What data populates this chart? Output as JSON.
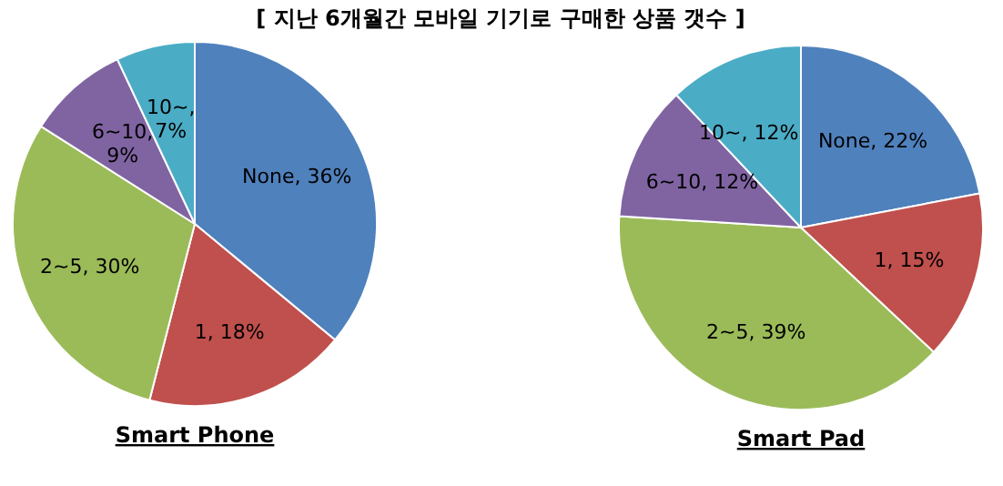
{
  "chart_data": [
    {
      "type": "pie",
      "title": "[ 지난 6개월간 모바일 기기로 구매한 상품 갯수 ]",
      "xlabel": "Smart Phone",
      "categories": [
        "None",
        "1",
        "2~5",
        "6~10",
        "10~"
      ],
      "values": [
        36,
        18,
        30,
        9,
        7
      ],
      "value_labels": [
        ", 36%",
        ", 18%",
        ", 30%",
        ", 9%",
        ", 7%"
      ],
      "colors": [
        "#4f81bd",
        "#c0504d",
        "#9bbb59",
        "#8064a2",
        "#4bacc6"
      ]
    },
    {
      "type": "pie",
      "xlabel": "Smart Pad",
      "categories": [
        "None",
        "1",
        "2~5",
        "6~10",
        "10~"
      ],
      "values": [
        22,
        15,
        39,
        12,
        12
      ],
      "value_labels": [
        ", 22%",
        ", 15%",
        ", 39%",
        ", 12%",
        ", 12%"
      ],
      "colors": [
        "#4f81bd",
        "#c0504d",
        "#9bbb59",
        "#8064a2",
        "#4bacc6"
      ]
    }
  ]
}
